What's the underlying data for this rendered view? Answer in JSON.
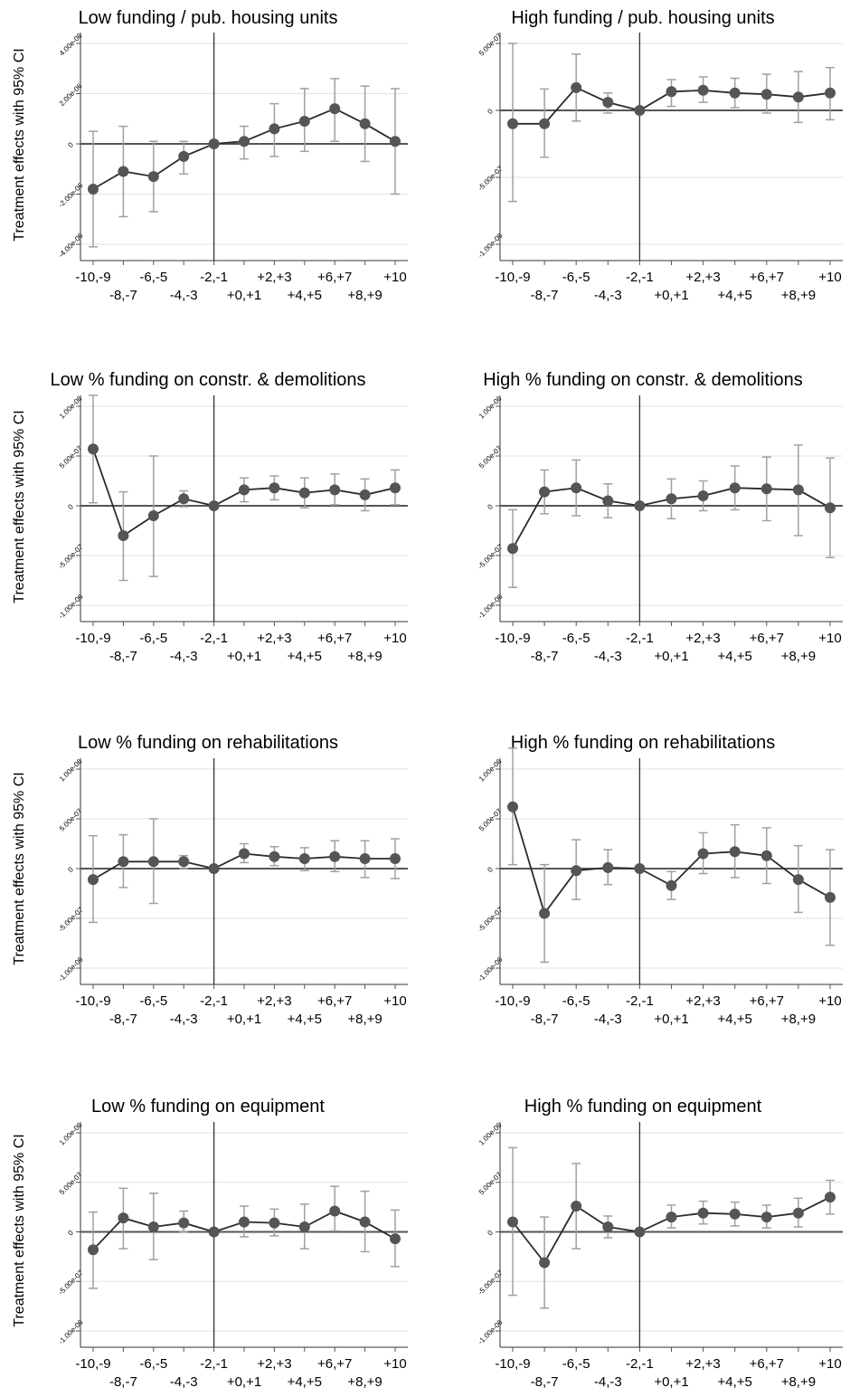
{
  "ylabel": "Treatment effects with 95% CI",
  "x_ticks_upper": [
    "-10,-9",
    "-6,-5",
    "-2,-1",
    "+2,+3",
    "+6,+7",
    "+10"
  ],
  "x_ticks_lower": [
    "-8,-7",
    "-4,-3",
    "+0,+1",
    "+4,+5",
    "+8,+9"
  ],
  "chart_data": [
    {
      "type": "line",
      "title": "Low funding / pub. housing units",
      "ylabel": "Treatment effects with 95% CI",
      "x": [
        "-10,-9",
        "-8,-7",
        "-6,-5",
        "-4,-3",
        "-2,-1",
        "+0,+1",
        "+2,+3",
        "+4,+5",
        "+6,+7",
        "+8,+9",
        "+10"
      ],
      "ylim": [
        -4e-06,
        4e-06
      ],
      "yticks": [
        -4e-06,
        -2e-06,
        0,
        2e-06,
        4e-06
      ],
      "ytick_labels": [
        "-4.00e-06",
        "-2.00e-06",
        "0",
        "2.00e-06",
        "4.00e-06"
      ],
      "values": [
        -1.8e-06,
        -1.1e-06,
        -1.3e-06,
        -5e-07,
        0,
        1e-07,
        6e-07,
        9e-07,
        1.4e-06,
        8e-07,
        1e-07
      ],
      "ci_low": [
        -4.1e-06,
        -2.9e-06,
        -2.7e-06,
        -1.2e-06,
        0,
        -6e-07,
        -5e-07,
        -3e-07,
        1e-07,
        -7e-07,
        -2e-06
      ],
      "ci_high": [
        5e-07,
        7e-07,
        1e-07,
        1e-07,
        0,
        7e-07,
        1.6e-06,
        2.2e-06,
        2.6e-06,
        2.3e-06,
        2.2e-06
      ]
    },
    {
      "type": "line",
      "title": "High funding / pub. housing units",
      "x": [
        "-10,-9",
        "-8,-7",
        "-6,-5",
        "-4,-3",
        "-2,-1",
        "+0,+1",
        "+2,+3",
        "+4,+5",
        "+6,+7",
        "+8,+9",
        "+10"
      ],
      "ylim": [
        -1e-06,
        5e-07
      ],
      "yticks": [
        -1e-06,
        -5e-07,
        0,
        5e-07
      ],
      "ytick_labels": [
        "-1.00e-06",
        "-5.00e-07",
        "0",
        "5.00e-07"
      ],
      "values": [
        -1e-07,
        -1e-07,
        1.7e-07,
        6e-08,
        0,
        1.4e-07,
        1.5e-07,
        1.3e-07,
        1.2e-07,
        1e-07,
        1.3e-07
      ],
      "ci_low": [
        -6.8e-07,
        -3.5e-07,
        -8e-08,
        -2e-08,
        0,
        3e-08,
        6e-08,
        2e-08,
        -2e-08,
        -9e-08,
        -7e-08
      ],
      "ci_high": [
        5e-07,
        1.6e-07,
        4.2e-07,
        1.3e-07,
        0,
        2.3e-07,
        2.5e-07,
        2.4e-07,
        2.7e-07,
        2.9e-07,
        3.2e-07
      ]
    },
    {
      "type": "line",
      "title": "Low % funding on constr. & demolitions",
      "ylabel": "Treatment effects with 95% CI",
      "x": [
        "-10,-9",
        "-8,-7",
        "-6,-5",
        "-4,-3",
        "-2,-1",
        "+0,+1",
        "+2,+3",
        "+4,+5",
        "+6,+7",
        "+8,+9",
        "+10"
      ],
      "ylim": [
        -1e-06,
        1e-06
      ],
      "yticks": [
        -1e-06,
        -5e-07,
        0,
        5e-07,
        1e-06
      ],
      "ytick_labels": [
        "-1.00e-06",
        "-5.00e-07",
        "0",
        "5.00e-07",
        "1.00e-06"
      ],
      "values": [
        5.7e-07,
        -3e-07,
        -1e-07,
        7e-08,
        0,
        1.6e-07,
        1.8e-07,
        1.3e-07,
        1.6e-07,
        1.1e-07,
        1.8e-07
      ],
      "ci_low": [
        3e-08,
        -7.5e-07,
        -7.1e-07,
        -1e-08,
        0,
        4e-08,
        6e-08,
        -2e-08,
        1e-08,
        -5e-08,
        1e-08
      ],
      "ci_high": [
        1.11e-06,
        1.4e-07,
        5e-07,
        1.5e-07,
        0,
        2.8e-07,
        3e-07,
        2.8e-07,
        3.2e-07,
        2.7e-07,
        3.6e-07
      ]
    },
    {
      "type": "line",
      "title": "High % funding on constr. & demolitions",
      "x": [
        "-10,-9",
        "-8,-7",
        "-6,-5",
        "-4,-3",
        "-2,-1",
        "+0,+1",
        "+2,+3",
        "+4,+5",
        "+6,+7",
        "+8,+9",
        "+10"
      ],
      "ylim": [
        -1e-06,
        1e-06
      ],
      "yticks": [
        -1e-06,
        -5e-07,
        0,
        5e-07,
        1e-06
      ],
      "ytick_labels": [
        "-1.00e-06",
        "-5.00e-07",
        "0",
        "5.00e-07",
        "1.00e-06"
      ],
      "values": [
        -4.3e-07,
        1.4e-07,
        1.8e-07,
        5e-08,
        0,
        7e-08,
        1e-07,
        1.8e-07,
        1.7e-07,
        1.6e-07,
        -2e-08
      ],
      "ci_low": [
        -8.2e-07,
        -8e-08,
        -1e-07,
        -1.2e-07,
        0,
        -1.3e-07,
        -5e-08,
        -4e-08,
        -1.5e-07,
        -3e-07,
        -5.2e-07
      ],
      "ci_high": [
        -4e-08,
        3.6e-07,
        4.6e-07,
        2.2e-07,
        0,
        2.7e-07,
        2.5e-07,
        4e-07,
        4.9e-07,
        6.1e-07,
        4.8e-07
      ]
    },
    {
      "type": "line",
      "title": "Low % funding on rehabilitations",
      "ylabel": "Treatment effects with 95% CI",
      "x": [
        "-10,-9",
        "-8,-7",
        "-6,-5",
        "-4,-3",
        "-2,-1",
        "+0,+1",
        "+2,+3",
        "+4,+5",
        "+6,+7",
        "+8,+9",
        "+10"
      ],
      "ylim": [
        -1e-06,
        1e-06
      ],
      "yticks": [
        -1e-06,
        -5e-07,
        0,
        5e-07,
        1e-06
      ],
      "ytick_labels": [
        "-1.00e-06",
        "-5.00e-07",
        "0",
        "5.00e-07",
        "1.00e-06"
      ],
      "values": [
        -1.1e-07,
        7e-08,
        7e-08,
        7e-08,
        0,
        1.5e-07,
        1.2e-07,
        1e-07,
        1.2e-07,
        1e-07,
        1e-07
      ],
      "ci_low": [
        -5.4e-07,
        -1.9e-07,
        -3.5e-07,
        0,
        0,
        6e-08,
        3e-08,
        -2e-08,
        -3e-08,
        -9e-08,
        -1e-07
      ],
      "ci_high": [
        3.3e-07,
        3.4e-07,
        5e-07,
        1.3e-07,
        0,
        2.5e-07,
        2.2e-07,
        2.1e-07,
        2.8e-07,
        2.8e-07,
        3e-07
      ]
    },
    {
      "type": "line",
      "title": "High % funding on rehabilitations",
      "x": [
        "-10,-9",
        "-8,-7",
        "-6,-5",
        "-4,-3",
        "-2,-1",
        "+0,+1",
        "+2,+3",
        "+4,+5",
        "+6,+7",
        "+8,+9",
        "+10"
      ],
      "ylim": [
        -1e-06,
        1e-06
      ],
      "yticks": [
        -1e-06,
        -5e-07,
        0,
        5e-07,
        1e-06
      ],
      "ytick_labels": [
        "-1.00e-06",
        "-5.00e-07",
        "0",
        "5.00e-07",
        "1.00e-06"
      ],
      "values": [
        6.2e-07,
        -4.5e-07,
        -2e-08,
        1e-08,
        0,
        -1.7e-07,
        1.5e-07,
        1.7e-07,
        1.3e-07,
        -1.1e-07,
        -2.9e-07
      ],
      "ci_low": [
        4e-08,
        -9.4e-07,
        -3.1e-07,
        -1.6e-07,
        0,
        -3.1e-07,
        -5e-08,
        -9e-08,
        -1.5e-07,
        -4.4e-07,
        -7.7e-07
      ],
      "ci_high": [
        1.21e-06,
        4e-08,
        2.9e-07,
        1.9e-07,
        0,
        -3e-08,
        3.6e-07,
        4.4e-07,
        4.1e-07,
        2.3e-07,
        1.9e-07
      ]
    },
    {
      "type": "line",
      "title": "Low % funding on equipment",
      "ylabel": "Treatment effects with 95% CI",
      "x": [
        "-10,-9",
        "-8,-7",
        "-6,-5",
        "-4,-3",
        "-2,-1",
        "+0,+1",
        "+2,+3",
        "+4,+5",
        "+6,+7",
        "+8,+9",
        "+10"
      ],
      "ylim": [
        -1e-06,
        1e-06
      ],
      "yticks": [
        -1e-06,
        -5e-07,
        0,
        5e-07,
        1e-06
      ],
      "ytick_labels": [
        "-1.00e-06",
        "-5.00e-07",
        "0",
        "5.00e-07",
        "1.00e-06"
      ],
      "values": [
        -1.8e-07,
        1.4e-07,
        5e-08,
        9e-08,
        0,
        1e-07,
        9e-08,
        5e-08,
        2.1e-07,
        1e-07,
        -7e-08
      ],
      "ci_low": [
        -5.7e-07,
        -1.7e-07,
        -2.8e-07,
        0,
        0,
        -5e-08,
        -4e-08,
        -1.7e-07,
        1e-08,
        -2e-07,
        -3.5e-07
      ],
      "ci_high": [
        2e-07,
        4.4e-07,
        3.9e-07,
        2.1e-07,
        0,
        2.6e-07,
        2.3e-07,
        2.8e-07,
        4.6e-07,
        4.1e-07,
        2.2e-07
      ]
    },
    {
      "type": "line",
      "title": "High % funding on equipment",
      "x": [
        "-10,-9",
        "-8,-7",
        "-6,-5",
        "-4,-3",
        "-2,-1",
        "+0,+1",
        "+2,+3",
        "+4,+5",
        "+6,+7",
        "+8,+9",
        "+10"
      ],
      "ylim": [
        -1e-06,
        1e-06
      ],
      "yticks": [
        -1e-06,
        -5e-07,
        0,
        5e-07,
        1e-06
      ],
      "ytick_labels": [
        "-1.00e-06",
        "-5.00e-07",
        "0",
        "5.00e-07",
        "1.00e-06"
      ],
      "values": [
        1e-07,
        -3.1e-07,
        2.6e-07,
        5e-08,
        0,
        1.5e-07,
        1.9e-07,
        1.8e-07,
        1.5e-07,
        1.9e-07,
        3.5e-07
      ],
      "ci_low": [
        -6.4e-07,
        -7.7e-07,
        -1.7e-07,
        -6e-08,
        0,
        4e-08,
        8e-08,
        6e-08,
        4e-08,
        5e-08,
        1.8e-07
      ],
      "ci_high": [
        8.5e-07,
        1.5e-07,
        6.9e-07,
        1.6e-07,
        0,
        2.7e-07,
        3.1e-07,
        3e-07,
        2.7e-07,
        3.4e-07,
        5.2e-07
      ]
    }
  ]
}
